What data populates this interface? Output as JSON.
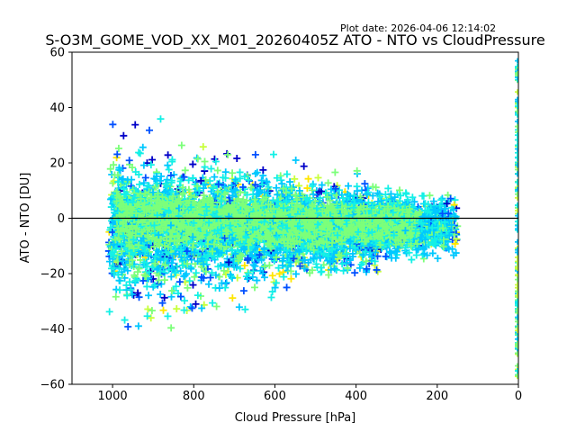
{
  "plot_date": "Plot date: 2026-04-06 12:14:02",
  "chart_data": {
    "type": "scatter",
    "title": "S-O3M_GOME_VOD_XX_M01_20260405Z ATO - NTO vs CloudPressure",
    "xlabel": "Cloud Pressure [hPa]",
    "ylabel": "ATO - NTO [DU]",
    "xlim": [
      1100,
      0
    ],
    "ylim": [
      -60,
      60
    ],
    "x_inverted": true,
    "xticks": [
      1000,
      800,
      600,
      400,
      200,
      0
    ],
    "yticks": [
      -60,
      -40,
      -20,
      0,
      20,
      40,
      60
    ],
    "xtick_labels": [
      "1000",
      "800",
      "600",
      "400",
      "200",
      "0"
    ],
    "ytick_labels": [
      "−60",
      "−40",
      "−20",
      "0",
      "20",
      "40",
      "60"
    ],
    "reference_line": {
      "y": 0,
      "color": "#000000"
    },
    "marker": "+",
    "colormap": "jet",
    "color_levels": [
      "#0000c8",
      "#0050ff",
      "#00c8ff",
      "#14f0e6",
      "#7cff7a",
      "#c8ff3c",
      "#ffe600"
    ],
    "density_bands": [
      {
        "name": "outer",
        "x_range": [
          1010,
          150
        ],
        "center_at_1000": -5,
        "center_at_200": -3,
        "halfwidth_at_1000": 48,
        "halfwidth_at_200": 14,
        "color_weights": [
          0.08,
          0.14,
          0.28,
          0.2,
          0.16,
          0.08,
          0.06
        ]
      },
      {
        "name": "mid",
        "x_range": [
          1005,
          170
        ],
        "center_at_1000": -3,
        "center_at_200": -3,
        "halfwidth_at_1000": 33,
        "halfwidth_at_200": 12,
        "color_weights": [
          0.01,
          0.04,
          0.42,
          0.36,
          0.17,
          0.0,
          0.0
        ]
      },
      {
        "name": "core",
        "x_range": [
          990,
          250
        ],
        "center_at_1000": 1,
        "center_at_200": -3,
        "halfwidth_at_1000": 15,
        "halfwidth_at_200": 8,
        "color_weights": [
          0.0,
          0.0,
          0.03,
          0.22,
          0.75,
          0.0,
          0.0
        ]
      }
    ],
    "zero_pressure_column": {
      "x": 0,
      "y_range": [
        -58,
        57
      ],
      "colors": [
        "#14f0e6",
        "#7cff7a",
        "#c8ff3c",
        "#00c8ff"
      ]
    }
  }
}
